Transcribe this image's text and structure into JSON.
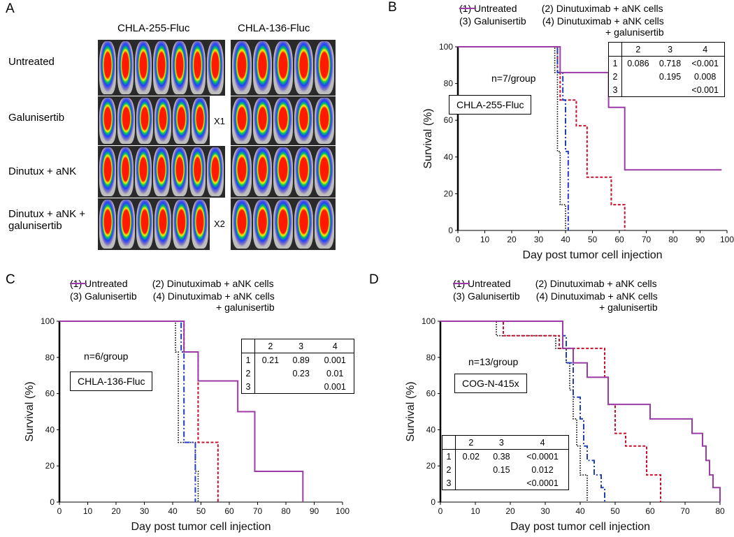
{
  "panel_a": {
    "letter": "A",
    "columns": [
      "CHLA-255-Fluc",
      "CHLA-136-Fluc"
    ],
    "rows": [
      "Untreated",
      "Galunisertib",
      "Dinutux + aNK",
      "Dinutux + aNK + galunisertib"
    ],
    "marks": [
      "X1",
      "X2"
    ]
  },
  "chart_data": [
    {
      "type": "survival",
      "letter": "B",
      "xlabel": "Day post tumor cell injection",
      "ylabel": "Survival (%)",
      "xlim": [
        0,
        100
      ],
      "xticks": [
        0,
        10,
        20,
        30,
        40,
        50,
        60,
        70,
        80,
        90,
        100
      ],
      "ylim": [
        0,
        100
      ],
      "yticks": [
        0,
        20,
        40,
        60,
        80,
        100
      ],
      "annotations": [
        "n=7/group",
        "CHLA-255-Fluc"
      ],
      "inset_table": {
        "columns": [
          "2",
          "3",
          "4"
        ],
        "rows": [
          [
            "1",
            "0.086",
            "0.718",
            "<0.001"
          ],
          [
            "2",
            null,
            "0.195",
            "0.008"
          ],
          [
            "3",
            null,
            null,
            "<0.001"
          ]
        ]
      },
      "series": [
        {
          "name": "(1) Untreated",
          "color": "#000000",
          "dash": "dotted",
          "x": [
            0,
            36,
            37,
            38,
            40
          ],
          "values": [
            100,
            86,
            43,
            14,
            0
          ]
        },
        {
          "name": "(2) Dinutuximab + aNK cells",
          "color": "#c8102e",
          "dash": "dashed",
          "x": [
            0,
            37,
            38,
            44,
            48,
            57,
            62
          ],
          "values": [
            100,
            86,
            71,
            57,
            29,
            14,
            0
          ]
        },
        {
          "name": "(3) Galunisertib",
          "color": "#1f3fbf",
          "dash": "dashdot",
          "x": [
            0,
            37,
            39,
            40,
            41
          ],
          "values": [
            100,
            86,
            71,
            43,
            0
          ]
        },
        {
          "name": "(4) Dinutuximab + aNK cells + galunisertib",
          "color": "#9b3ba6",
          "dash": "solid",
          "x": [
            0,
            38,
            56,
            62,
            98
          ],
          "values": [
            100,
            86,
            67,
            33,
            33
          ]
        }
      ]
    },
    {
      "type": "survival",
      "letter": "C",
      "xlabel": "Day post tumor cell injection",
      "ylabel": "Survival (%)",
      "xlim": [
        0,
        100
      ],
      "xticks": [
        0,
        10,
        20,
        30,
        40,
        50,
        60,
        70,
        80,
        90,
        100
      ],
      "ylim": [
        0,
        100
      ],
      "yticks": [
        0,
        20,
        40,
        60,
        80,
        100
      ],
      "annotations": [
        "n=6/group",
        "CHLA-136-Fluc"
      ],
      "inset_table": {
        "columns": [
          "2",
          "3",
          "4"
        ],
        "rows": [
          [
            "1",
            "0.21",
            "0.89",
            "0.001"
          ],
          [
            "2",
            null,
            "0.23",
            "0.01"
          ],
          [
            "3",
            null,
            null,
            "0.001"
          ]
        ]
      },
      "series": [
        {
          "name": "(1) Untreated",
          "color": "#000000",
          "dash": "dotted",
          "x": [
            0,
            41,
            42,
            48,
            49
          ],
          "values": [
            100,
            83,
            33,
            17,
            0
          ]
        },
        {
          "name": "(2) Dinutuximab + aNK cells",
          "color": "#c8102e",
          "dash": "dashed",
          "x": [
            0,
            44,
            49,
            56
          ],
          "values": [
            100,
            83,
            33,
            0
          ]
        },
        {
          "name": "(3) Galunisertib",
          "color": "#1f3fbf",
          "dash": "dashdot",
          "x": [
            0,
            43,
            44,
            48
          ],
          "values": [
            100,
            83,
            33,
            0
          ]
        },
        {
          "name": "(4) Dinutuximab + aNK cells + galunisertib",
          "color": "#9b3ba6",
          "dash": "solid",
          "x": [
            0,
            44,
            49,
            63,
            69,
            86
          ],
          "values": [
            100,
            83,
            67,
            50,
            17,
            0
          ]
        }
      ]
    },
    {
      "type": "survival",
      "letter": "D",
      "xlabel": "Day post tumor cell injection",
      "ylabel": "Survival (%)",
      "xlim": [
        0,
        80
      ],
      "xticks": [
        0,
        10,
        20,
        30,
        40,
        50,
        60,
        70,
        80
      ],
      "ylim": [
        0,
        100
      ],
      "yticks": [
        0,
        20,
        40,
        60,
        80,
        100
      ],
      "annotations": [
        "n=13/group",
        "COG-N-415x"
      ],
      "inset_table": {
        "columns": [
          "2",
          "3",
          "4"
        ],
        "rows": [
          [
            "1",
            "0.02",
            "0.38",
            "<0.0001"
          ],
          [
            "2",
            null,
            "0.15",
            "0.012"
          ],
          [
            "3",
            null,
            null,
            "<0.0001"
          ]
        ]
      },
      "series": [
        {
          "name": "(1) Untreated",
          "color": "#000000",
          "dash": "dotted",
          "x": [
            0,
            16,
            33,
            36,
            37,
            38,
            39,
            40,
            42
          ],
          "values": [
            100,
            92,
            85,
            77,
            62,
            46,
            31,
            15,
            0
          ]
        },
        {
          "name": "(2) Dinutuximab + aNK cells",
          "color": "#c8102e",
          "dash": "dashed",
          "x": [
            0,
            18,
            34,
            47,
            48,
            50,
            53,
            59,
            63
          ],
          "values": [
            100,
            92,
            85,
            69,
            54,
            38,
            31,
            15,
            0
          ]
        },
        {
          "name": "(3) Galunisertib",
          "color": "#1f3fbf",
          "dash": "dashdot",
          "x": [
            0,
            35,
            36,
            38,
            40,
            41,
            42,
            44,
            46,
            47
          ],
          "values": [
            100,
            92,
            77,
            58,
            46,
            31,
            23,
            15,
            8,
            0
          ]
        },
        {
          "name": "(4) Dinutuximab + aNK cells + galunisertib",
          "color": "#9b3ba6",
          "dash": "solid",
          "x": [
            0,
            35,
            38,
            42,
            48,
            60,
            72,
            75,
            76,
            77,
            78,
            80
          ],
          "values": [
            100,
            85,
            77,
            69,
            54,
            46,
            38,
            31,
            23,
            15,
            8,
            0
          ]
        }
      ]
    }
  ]
}
